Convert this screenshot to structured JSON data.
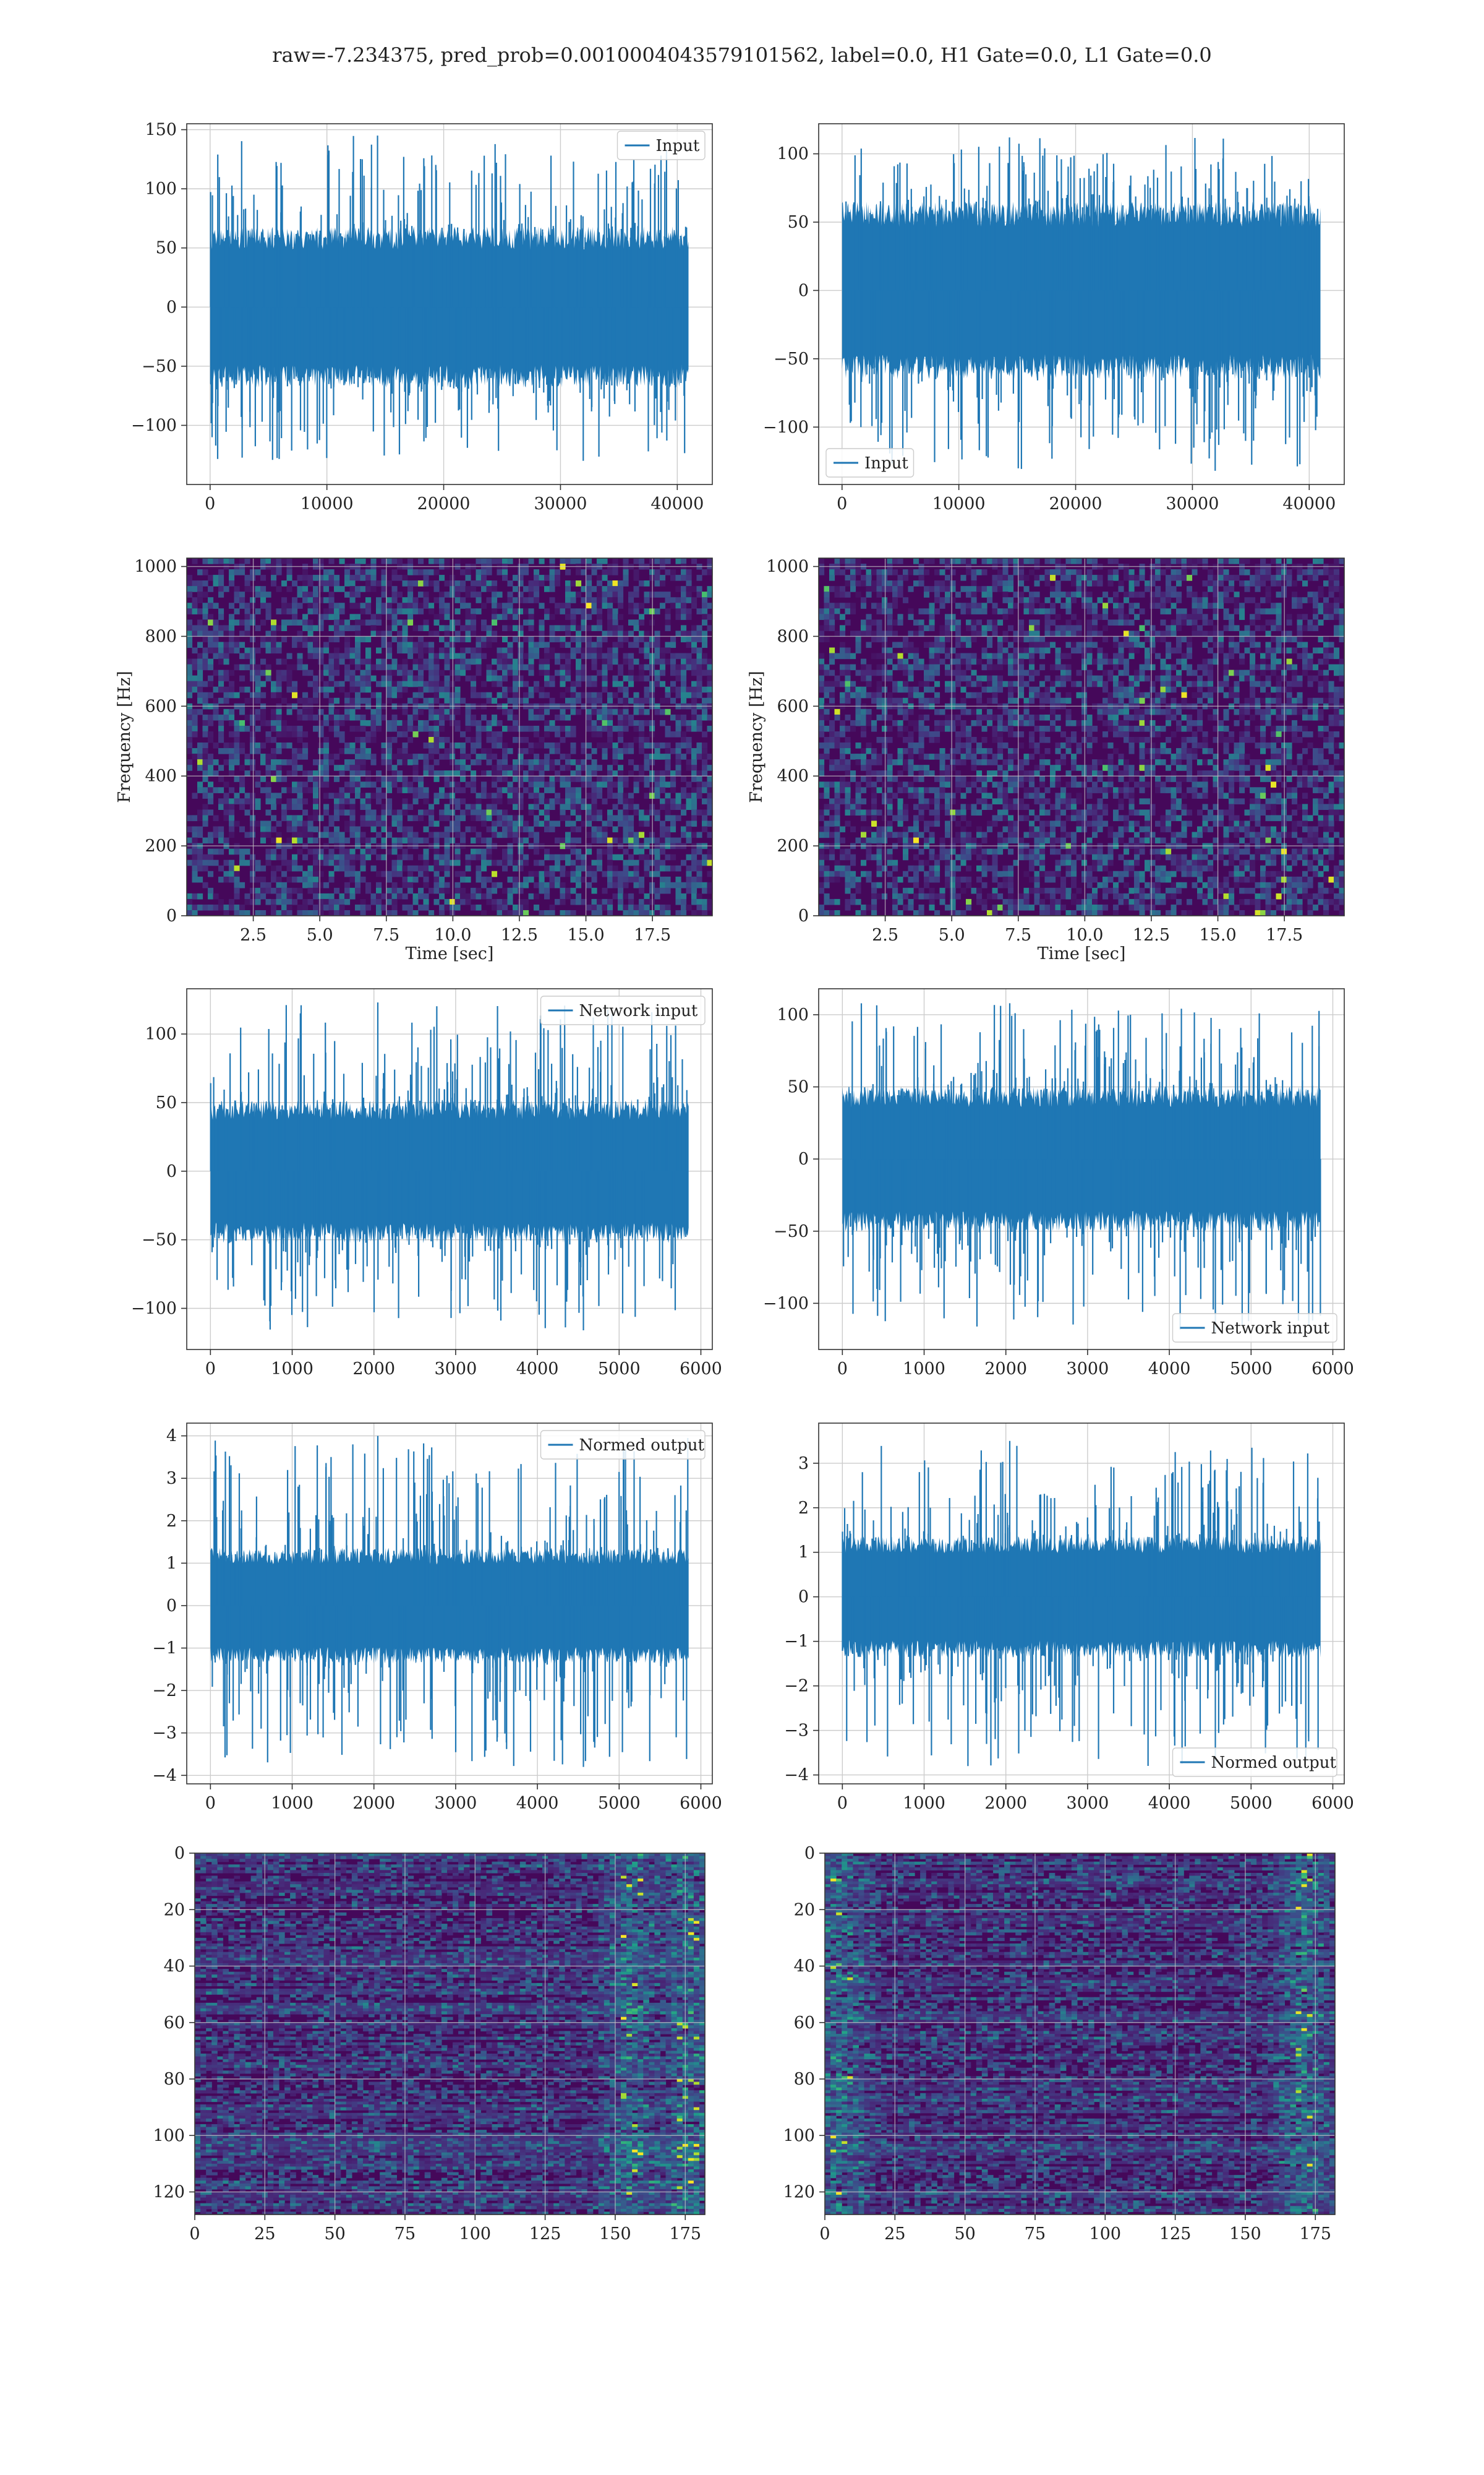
{
  "figure": {
    "suptitle": "raw=-7.234375, pred_prob=0.0010004043579101562, label=0.0, H1 Gate=0.0, L1 Gate=0.0",
    "line_color": "#1f77b4",
    "grid_color": "#cccccc"
  },
  "chart_data": [
    {
      "id": "input-h1",
      "type": "line",
      "series": [
        {
          "name": "Input",
          "x_range": [
            0,
            40960
          ],
          "y_min": -130,
          "y_max": 145,
          "envelope": 65
        }
      ],
      "xlim": [
        -2000,
        43000
      ],
      "ylim": [
        -150,
        155
      ],
      "xticks": [
        0,
        10000,
        20000,
        30000,
        40000
      ],
      "yticks": [
        -100,
        -50,
        0,
        50,
        100,
        150
      ],
      "xlabel": "",
      "ylabel": "",
      "grid": true,
      "legend": "upper right"
    },
    {
      "id": "input-l1",
      "type": "line",
      "series": [
        {
          "name": "Input",
          "x_range": [
            0,
            40960
          ],
          "y_min": -132,
          "y_max": 112,
          "envelope": 62
        }
      ],
      "xlim": [
        -2000,
        43000
      ],
      "ylim": [
        -142,
        122
      ],
      "xticks": [
        0,
        10000,
        20000,
        30000,
        40000
      ],
      "yticks": [
        -100,
        -50,
        0,
        50,
        100
      ],
      "xlabel": "",
      "ylabel": "",
      "grid": true,
      "legend": "lower left"
    },
    {
      "id": "spectrogram-h1",
      "type": "heatmap",
      "xlim": [
        0,
        19.75
      ],
      "ylim": [
        0,
        1024
      ],
      "xticks": [
        2.5,
        5.0,
        7.5,
        10.0,
        12.5,
        15.0,
        17.5
      ],
      "yticks": [
        0,
        200,
        400,
        600,
        800,
        1000
      ],
      "xlabel": "Time [sec]",
      "ylabel": "Frequency [Hz]",
      "grid": true,
      "colormap": "viridis"
    },
    {
      "id": "spectrogram-l1",
      "type": "heatmap",
      "xlim": [
        0,
        19.75
      ],
      "ylim": [
        0,
        1024
      ],
      "xticks": [
        2.5,
        5.0,
        7.5,
        10.0,
        12.5,
        15.0,
        17.5
      ],
      "yticks": [
        0,
        200,
        400,
        600,
        800,
        1000
      ],
      "xlabel": "Time [sec]",
      "ylabel": "Frequency [Hz]",
      "grid": true,
      "colormap": "viridis"
    },
    {
      "id": "network-input-h1",
      "type": "line",
      "series": [
        {
          "name": "Network input",
          "x_range": [
            0,
            5850
          ],
          "y_min": -116,
          "y_max": 123,
          "envelope": 50
        }
      ],
      "xlim": [
        -290,
        6140
      ],
      "ylim": [
        -130,
        133
      ],
      "xticks": [
        0,
        1000,
        2000,
        3000,
        4000,
        5000,
        6000
      ],
      "yticks": [
        -100,
        -50,
        0,
        50,
        100
      ],
      "xlabel": "",
      "ylabel": "",
      "grid": true,
      "legend": "upper right"
    },
    {
      "id": "network-input-l1",
      "type": "line",
      "series": [
        {
          "name": "Network input",
          "x_range": [
            0,
            5850
          ],
          "y_min": -120,
          "y_max": 108,
          "envelope": 48
        }
      ],
      "xlim": [
        -290,
        6140
      ],
      "ylim": [
        -132,
        118
      ],
      "xticks": [
        0,
        1000,
        2000,
        3000,
        4000,
        5000,
        6000
      ],
      "yticks": [
        -100,
        -50,
        0,
        50,
        100
      ],
      "xlabel": "",
      "ylabel": "",
      "grid": true,
      "legend": "lower right"
    },
    {
      "id": "normed-output-h1",
      "type": "line",
      "series": [
        {
          "name": "Normed output",
          "x_range": [
            0,
            5850
          ],
          "y_min": -3.8,
          "y_max": 4.0,
          "envelope": 1.3
        }
      ],
      "xlim": [
        -290,
        6140
      ],
      "ylim": [
        -4.2,
        4.3
      ],
      "xticks": [
        0,
        1000,
        2000,
        3000,
        4000,
        5000,
        6000
      ],
      "yticks": [
        -4,
        -3,
        -2,
        -1,
        0,
        1,
        2,
        3,
        4
      ],
      "xlabel": "",
      "ylabel": "",
      "grid": true,
      "legend": "upper right"
    },
    {
      "id": "normed-output-l1",
      "type": "line",
      "series": [
        {
          "name": "Normed output",
          "x_range": [
            0,
            5850
          ],
          "y_min": -3.8,
          "y_max": 3.5,
          "envelope": 1.3
        }
      ],
      "xlim": [
        -290,
        6140
      ],
      "ylim": [
        -4.2,
        3.9
      ],
      "xticks": [
        0,
        1000,
        2000,
        3000,
        4000,
        5000,
        6000
      ],
      "yticks": [
        -4,
        -3,
        -2,
        -1,
        0,
        1,
        2,
        3
      ],
      "xlabel": "",
      "ylabel": "",
      "grid": true,
      "legend": "lower right"
    },
    {
      "id": "feature-map-h1",
      "type": "heatmap",
      "xlim": [
        0,
        182
      ],
      "ylim": [
        128,
        0
      ],
      "xticks": [
        0,
        25,
        50,
        75,
        100,
        125,
        150,
        175
      ],
      "yticks": [
        0,
        20,
        40,
        60,
        80,
        100,
        120
      ],
      "xlabel": "",
      "ylabel": "",
      "grid": true,
      "colormap": "viridis",
      "bright_columns": [
        155,
        175
      ]
    },
    {
      "id": "feature-map-l1",
      "type": "heatmap",
      "xlim": [
        0,
        182
      ],
      "ylim": [
        128,
        0
      ],
      "xticks": [
        0,
        25,
        50,
        75,
        100,
        125,
        150,
        175
      ],
      "yticks": [
        0,
        20,
        40,
        60,
        80,
        100,
        120
      ],
      "xlabel": "",
      "ylabel": "",
      "grid": true,
      "colormap": "viridis",
      "bright_columns": [
        5,
        170
      ]
    }
  ]
}
